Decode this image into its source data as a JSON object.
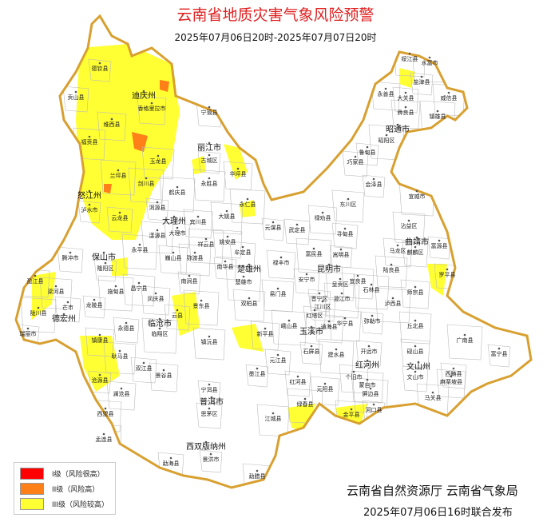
{
  "title": "云南省地质灾害气象风险预警",
  "period": "2025年07月06日20时-2025年07月07日20时",
  "colors": {
    "level1": "#ff0000",
    "level2": "#ff8018",
    "level3": "#ffff33",
    "border": "#d8a030",
    "title": "#e02020"
  },
  "legend": [
    {
      "label": "I级（风险很高）",
      "color": "#ff0000"
    },
    {
      "label": "II级（风险高）",
      "color": "#ff8018"
    },
    {
      "label": "III级（风险较高）",
      "color": "#ffff33"
    }
  ],
  "prefectures": [
    "迪庆州",
    "丽江市",
    "怒江州",
    "大理州",
    "保山市",
    "德宏州",
    "临沧市",
    "普洱市",
    "西双版纳州",
    "楚雄州",
    "昆明市",
    "玉溪市",
    "红河州",
    "文山州",
    "曲靖市",
    "昭通市"
  ],
  "counties": [
    "德钦县",
    "贡山县",
    "维西县",
    "福贡县",
    "兰坪县",
    "泸水市",
    "云龙县",
    "香格里拉市",
    "玉龙县",
    "剑川县",
    "古城区",
    "宁蒗县",
    "华坪县",
    "永胜县",
    "鹤庆县",
    "洱源县",
    "大理市",
    "宾川县",
    "漾濞县",
    "永平县",
    "隆阳区",
    "腾冲市",
    "巍山县",
    "弥渡县",
    "祥云县",
    "南涧县",
    "云县",
    "凤庆县",
    "昌宁县",
    "施甸县",
    "龙陵县",
    "芒市",
    "盈江县",
    "梁河县",
    "陇川县",
    "瑞丽市",
    "永德县",
    "镇康县",
    "耿马县",
    "临翔区",
    "沧源县",
    "双江县",
    "景谷县",
    "镇沅县",
    "景东县",
    "宁洱县",
    "思茅区",
    "澜沧县",
    "西盟县",
    "孟连县",
    "景洪市",
    "勐海县",
    "勐腊县",
    "江城县",
    "绿春县",
    "墨江县",
    "元江县",
    "新平县",
    "双柏县",
    "楚雄市",
    "南华县",
    "牟定县",
    "姚安县",
    "大姚县",
    "永仁县",
    "元谋县",
    "武定县",
    "禄丰市",
    "易门县",
    "峨山县",
    "红塔区",
    "江川区",
    "通海县",
    "华宁县",
    "澄江市",
    "晋宁区",
    "安宁市",
    "呈贡区",
    "宜良县",
    "石林县",
    "嵩明县",
    "寻甸县",
    "禄劝县",
    "东川区",
    "富民县",
    "会泽县",
    "麒麟区",
    "马龙区",
    "沾益区",
    "宣威市",
    "富源县",
    "罗平县",
    "师宗县",
    "陆良县",
    "泸西县",
    "弥勒市",
    "开远市",
    "个旧市",
    "蒙自市",
    "建水县",
    "石屏县",
    "红河县",
    "元阳县",
    "金平县",
    "屏边县",
    "河口县",
    "文山市",
    "砚山县",
    "丘北县",
    "广南县",
    "富宁县",
    "西畴县",
    "麻栗坡县",
    "马关县",
    "昭阳区",
    "鲁甸县",
    "巧家县",
    "永善县",
    "绥江县",
    "水富市",
    "盐津县",
    "大关县",
    "彝良县",
    "威信县",
    "镇雄县"
  ],
  "issuer": "云南省自然资源厅  云南省气象局",
  "issued": "2025年07月06日16时联合发布"
}
